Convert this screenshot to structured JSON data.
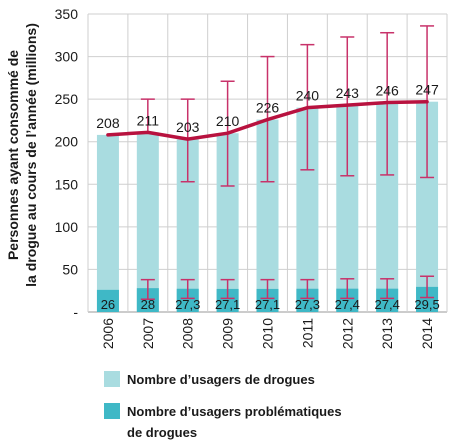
{
  "chart_data": {
    "type": "bar",
    "title": "",
    "ylabel_lines": [
      "Personnes ayant consommé de",
      "la drogue au cours de l’année (millions)"
    ],
    "xlabel": "",
    "ylim": [
      0,
      350
    ],
    "yticks": [
      0,
      50,
      100,
      150,
      200,
      250,
      300,
      350
    ],
    "ytick_labels": [
      "-",
      "50",
      "100",
      "150",
      "200",
      "250",
      "300",
      "350"
    ],
    "grid": true,
    "categories": [
      "2006",
      "2007",
      "2008",
      "2009",
      "2010",
      "2011",
      "2012",
      "2013",
      "2014"
    ],
    "series": [
      {
        "name": "Nombre d’usagers de drogues",
        "color": "#a9dce0",
        "values": [
          208,
          211,
          203,
          210,
          226,
          240,
          243,
          246,
          247
        ],
        "value_labels": [
          "208",
          "211",
          "203",
          "210",
          "226",
          "240",
          "243",
          "246",
          "247"
        ],
        "error_low": [
          null,
          210,
          153,
          148,
          153,
          167,
          160,
          161,
          158
        ],
        "error_high": [
          null,
          250,
          250,
          271,
          300,
          314,
          323,
          328,
          336
        ]
      },
      {
        "name": "Nombre d’usagers problématiques de drogues",
        "color": "#3fb8c6",
        "values": [
          26,
          28,
          27.3,
          27.1,
          27.1,
          27.3,
          27.4,
          27.4,
          29.5
        ],
        "value_labels": [
          "26",
          "28",
          "27,3",
          "27,1",
          "27,1",
          "27,3",
          "27,4",
          "27,4",
          "29,5"
        ],
        "error_low": [
          null,
          15,
          16,
          16,
          16,
          16,
          16,
          16,
          17
        ],
        "error_high": [
          null,
          38,
          38,
          38,
          38,
          38,
          39,
          39,
          42
        ]
      }
    ],
    "line": {
      "color": "#b8123f",
      "error_color": "#c8326a"
    },
    "legend": {
      "placement": "bottom",
      "items": [
        {
          "label_lines": [
            "Nombre d’usagers de drogues"
          ],
          "color": "#a9dce0"
        },
        {
          "label_lines": [
            "Nombre d’usagers problématiques",
            "de drogues"
          ],
          "color": "#3fb8c6"
        }
      ]
    }
  }
}
